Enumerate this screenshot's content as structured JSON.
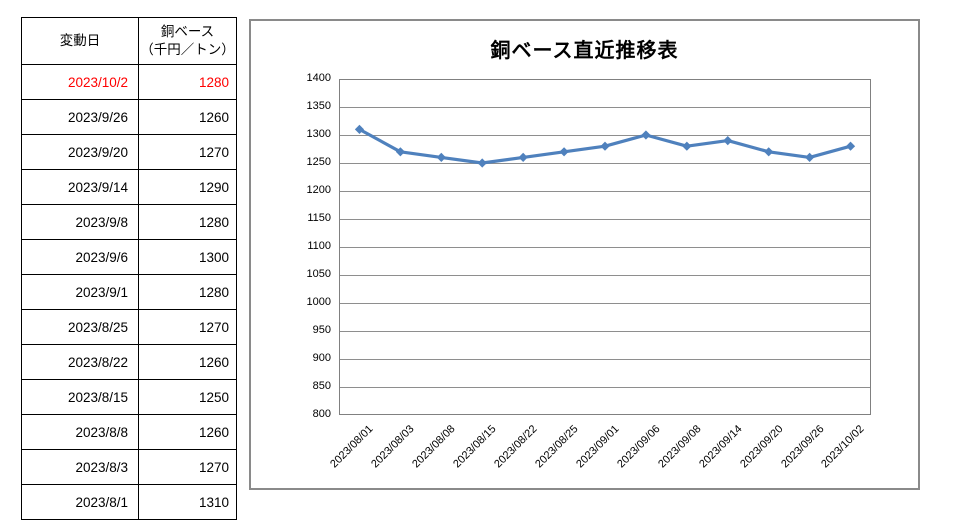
{
  "colors": {
    "accent": "#4F81BD",
    "highlight": "#FF0000",
    "gridline": "#8E8E8E",
    "axis": "#808080",
    "chart_border": "#8A8A8A",
    "table_border": "#000000"
  },
  "table": {
    "header": {
      "date": "変動日",
      "price_line1": "銅ベース",
      "price_line2": "（千円／トン）"
    },
    "rows": [
      {
        "date": "2023/10/2",
        "value": "1280",
        "highlight": true
      },
      {
        "date": "2023/9/26",
        "value": "1260",
        "highlight": false
      },
      {
        "date": "2023/9/20",
        "value": "1270",
        "highlight": false
      },
      {
        "date": "2023/9/14",
        "value": "1290",
        "highlight": false
      },
      {
        "date": "2023/9/8",
        "value": "1280",
        "highlight": false
      },
      {
        "date": "2023/9/6",
        "value": "1300",
        "highlight": false
      },
      {
        "date": "2023/9/1",
        "value": "1280",
        "highlight": false
      },
      {
        "date": "2023/8/25",
        "value": "1270",
        "highlight": false
      },
      {
        "date": "2023/8/22",
        "value": "1260",
        "highlight": false
      },
      {
        "date": "2023/8/15",
        "value": "1250",
        "highlight": false
      },
      {
        "date": "2023/8/8",
        "value": "1260",
        "highlight": false
      },
      {
        "date": "2023/8/3",
        "value": "1270",
        "highlight": false
      },
      {
        "date": "2023/8/1",
        "value": "1310",
        "highlight": false
      }
    ]
  },
  "chart_data": {
    "type": "line",
    "title": "銅ベース直近推移表",
    "categories": [
      "2023/08/01",
      "2023/08/03",
      "2023/08/08",
      "2023/08/15",
      "2023/08/22",
      "2023/08/25",
      "2023/09/01",
      "2023/09/06",
      "2023/09/08",
      "2023/09/14",
      "2023/09/20",
      "2023/09/26",
      "2023/10/02"
    ],
    "values": [
      1310,
      1270,
      1260,
      1250,
      1260,
      1270,
      1280,
      1300,
      1280,
      1290,
      1270,
      1260,
      1280
    ],
    "xlabel": "",
    "ylabel": "",
    "ylim": [
      800,
      1400
    ],
    "ytick_step": 50,
    "grid": true,
    "legend_position": "none",
    "line_color": "#4F81BD",
    "marker": "diamond"
  }
}
